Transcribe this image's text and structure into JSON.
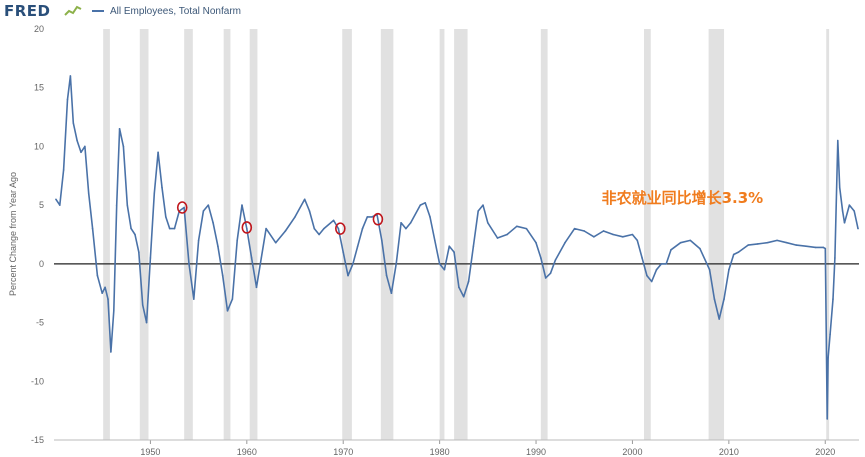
{
  "header": {
    "logo_text": "FRED",
    "logo_icon": "fred-graph-icon",
    "legend_label": "All Employees, Total Nonfarm"
  },
  "colors": {
    "series": "#4a72a8",
    "recession": "#e1e1e1",
    "zero_line": "#222222",
    "annotation": "#f07c1e",
    "markers": "#c0161c"
  },
  "chart_data": {
    "type": "line",
    "title": "",
    "xlabel": "",
    "ylabel": "Percent Change from Year Ago",
    "xlim": [
      1940,
      2023.5
    ],
    "ylim": [
      -15,
      20
    ],
    "x_ticks": [
      1950,
      1960,
      1970,
      1980,
      1990,
      2000,
      2010,
      2020
    ],
    "x_tick_labels": [
      "1950",
      "1960",
      "1970",
      "1980",
      "1990",
      "2000",
      "2010",
      "2020"
    ],
    "y_ticks": [
      -15,
      -10,
      -5,
      0,
      5,
      10,
      15,
      20
    ],
    "y_tick_labels": [
      "-15",
      "-10",
      "-5",
      "0",
      "5",
      "10",
      "15",
      "20"
    ],
    "grid": false,
    "legend_position": "top-left",
    "recessions": [
      [
        1945.1,
        1945.8
      ],
      [
        1948.9,
        1949.8
      ],
      [
        1953.5,
        1954.4
      ],
      [
        1957.6,
        1958.3
      ],
      [
        1960.3,
        1961.1
      ],
      [
        1969.9,
        1970.9
      ],
      [
        1973.9,
        1975.2
      ],
      [
        1980.0,
        1980.5
      ],
      [
        1981.5,
        1982.9
      ],
      [
        1990.5,
        1991.2
      ],
      [
        2001.2,
        2001.9
      ],
      [
        2007.9,
        2009.5
      ],
      [
        2020.1,
        2020.4
      ]
    ],
    "series": [
      {
        "x": [
          1940.2,
          1940.6,
          1941.0,
          1941.4,
          1941.7,
          1942.0,
          1942.4,
          1942.8,
          1943.2,
          1943.6,
          1944.0,
          1944.5,
          1945.0,
          1945.3,
          1945.6,
          1945.9,
          1946.2,
          1946.5,
          1946.8,
          1947.2,
          1947.6,
          1948.0,
          1948.4,
          1948.8,
          1949.2,
          1949.6,
          1950.0,
          1950.4,
          1950.8,
          1951.2,
          1951.6,
          1952.0,
          1952.5,
          1953.0,
          1953.5,
          1954.0,
          1954.5,
          1955.0,
          1955.5,
          1956.0,
          1956.5,
          1957.0,
          1957.5,
          1958.0,
          1958.5,
          1959.0,
          1959.5,
          1960.0,
          1960.5,
          1961.0,
          1961.5,
          1962.0,
          1963.0,
          1964.0,
          1965.0,
          1966.0,
          1966.5,
          1967.0,
          1967.5,
          1968.0,
          1969.0,
          1969.5,
          1970.0,
          1970.5,
          1971.0,
          1971.5,
          1972.0,
          1972.5,
          1973.0,
          1973.5,
          1974.0,
          1974.5,
          1975.0,
          1975.5,
          1976.0,
          1976.5,
          1977.0,
          1978.0,
          1978.5,
          1979.0,
          1979.5,
          1980.0,
          1980.5,
          1981.0,
          1981.5,
          1982.0,
          1982.5,
          1983.0,
          1983.5,
          1984.0,
          1984.5,
          1985.0,
          1986.0,
          1987.0,
          1988.0,
          1989.0,
          1990.0,
          1990.5,
          1991.0,
          1991.5,
          1992.0,
          1993.0,
          1994.0,
          1995.0,
          1996.0,
          1997.0,
          1998.0,
          1999.0,
          2000.0,
          2000.5,
          2001.0,
          2001.5,
          2002.0,
          2002.5,
          2003.0,
          2003.5,
          2004.0,
          2005.0,
          2006.0,
          2007.0,
          2008.0,
          2008.5,
          2009.0,
          2009.5,
          2010.0,
          2010.5,
          2011.0,
          2012.0,
          2013.0,
          2014.0,
          2015.0,
          2016.0,
          2017.0,
          2018.0,
          2019.0,
          2019.8,
          2020.0,
          2020.2,
          2020.3,
          2020.5,
          2020.8,
          2021.0,
          2021.3,
          2021.5,
          2021.8,
          2022.0,
          2022.5,
          2023.0,
          2023.4
        ],
        "y": [
          5.5,
          5.0,
          8.0,
          14.0,
          16.0,
          12.0,
          10.5,
          9.5,
          10.0,
          6.0,
          3.0,
          -1.0,
          -2.5,
          -2.0,
          -3.0,
          -7.5,
          -4.0,
          5.0,
          11.5,
          10.0,
          5.0,
          3.0,
          2.5,
          1.0,
          -3.5,
          -5.0,
          0.5,
          6.0,
          9.5,
          6.5,
          4.0,
          3.0,
          3.0,
          4.5,
          4.8,
          0.0,
          -3.0,
          2.0,
          4.5,
          5.0,
          3.5,
          1.5,
          -1.0,
          -4.0,
          -3.0,
          2.0,
          5.0,
          3.0,
          0.5,
          -2.0,
          0.5,
          3.0,
          1.8,
          2.8,
          4.0,
          5.5,
          4.5,
          3.0,
          2.5,
          3.0,
          3.7,
          3.0,
          1.0,
          -1.0,
          0.0,
          1.5,
          3.0,
          4.0,
          4.0,
          4.2,
          2.0,
          -1.0,
          -2.5,
          0.0,
          3.5,
          3.0,
          3.5,
          5.0,
          5.2,
          4.0,
          2.0,
          0.0,
          -0.5,
          1.5,
          1.0,
          -2.0,
          -2.8,
          -1.5,
          1.5,
          4.5,
          5.0,
          3.5,
          2.2,
          2.5,
          3.2,
          3.0,
          1.8,
          0.5,
          -1.2,
          -0.8,
          0.3,
          1.8,
          3.0,
          2.8,
          2.3,
          2.8,
          2.5,
          2.3,
          2.5,
          2.0,
          0.5,
          -1.0,
          -1.5,
          -0.5,
          0.0,
          0.0,
          1.2,
          1.8,
          2.0,
          1.3,
          -0.5,
          -3.0,
          -4.7,
          -3.0,
          -0.5,
          0.8,
          1.0,
          1.6,
          1.7,
          1.8,
          2.0,
          1.8,
          1.6,
          1.5,
          1.4,
          1.4,
          1.3,
          -13.2,
          -8.0,
          -6.0,
          -3.0,
          0.5,
          10.5,
          6.5,
          4.5,
          3.5,
          5.0,
          4.5,
          3.0
        ]
      }
    ],
    "markers": [
      {
        "x": 1953.3,
        "y": 4.8
      },
      {
        "x": 1960.0,
        "y": 3.1
      },
      {
        "x": 1969.7,
        "y": 3.0
      },
      {
        "x": 1973.6,
        "y": 3.8
      }
    ],
    "annotations": [
      {
        "text": "非农就业同比增长3.3%",
        "x": 1996.8,
        "y": 5.6
      }
    ]
  }
}
